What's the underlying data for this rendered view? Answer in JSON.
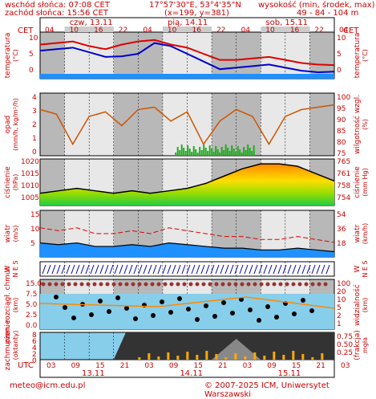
{
  "header": {
    "sunrise": "wschód słońca: 07:08 CET",
    "sunset": "zachód słońca: 15:56 CET",
    "coords": "17°57'30\"E, 53°4'35\"N",
    "grid": "(x=199, y=381)",
    "height_label": "wysokość (min, środek, max)",
    "height_values": "49 - 84 - 104 m"
  },
  "timezone": {
    "left": "CET",
    "right": "CET"
  },
  "top_hours": [
    "04",
    "10",
    "16",
    "22",
    "04",
    "10",
    "16",
    "22",
    "04",
    "10",
    "16",
    "22",
    "04"
  ],
  "top_days": [
    "czw, 13.11",
    "pią, 14.11",
    "sob, 15.11"
  ],
  "bottom_tz": "UTC",
  "bottom_hours": [
    "03",
    "09",
    "15",
    "21",
    "03",
    "09",
    "15",
    "21",
    "03",
    "09",
    "15",
    "21",
    "03"
  ],
  "bottom_days": [
    "13.11",
    "14.11",
    "15.11"
  ],
  "panels": {
    "temperature": {
      "label_left": "temperatura",
      "label_left2": "(°C)",
      "label_right": "temperatura",
      "label_right2": "(°C)",
      "ticks": [
        "10",
        "5",
        "0"
      ]
    },
    "precip": {
      "label_left": "opad",
      "label_left2": "(mm/h, kg/m²/h)",
      "label_right": "wilgotność wzgl.",
      "label_right2": "(%)",
      "ticks_left": [
        "4",
        "3",
        "2",
        "1",
        "0"
      ],
      "ticks_right": [
        "100",
        "95",
        "90",
        "85",
        "80",
        "75"
      ]
    },
    "pressure": {
      "label_left": "ciśnienie",
      "label_left2": "(hPa)",
      "label_right": "ciśnienie",
      "label_right2": "(mm Hg)",
      "ticks_left": [
        "1020",
        "1015",
        "1010",
        "1005"
      ],
      "ticks_right": [
        "765",
        "761",
        "758",
        "754"
      ]
    },
    "wind": {
      "label_left": "wiatr",
      "label_left2": "(m/s)",
      "label_right": "wiatr",
      "label_right2": "(km/h)",
      "ticks_left": [
        "15",
        "10",
        "5"
      ],
      "ticks_right": [
        "54",
        "36",
        "18"
      ]
    },
    "winddir": {
      "label_left": "W",
      "label_left2": "N E S",
      "label_right": "W",
      "label_right2": "N E S"
    },
    "cloud": {
      "label_left": "pion. rozciągł. chmur",
      "label_left2": "(km)",
      "label_right": "widzialność",
      "label_right2": "(km)",
      "ticks_left": [
        "15.0",
        "7.5",
        "5.0",
        "2.5",
        "0.0"
      ],
      "ticks_right": [
        "100",
        "20",
        "10",
        "5",
        "2",
        "1"
      ]
    },
    "cover": {
      "label_left": "zachmurzenie",
      "label_left2": "(oktanty)",
      "label_right": "(frakcja)",
      "label_right2": "mgła",
      "ticks_left": [
        "8",
        "6",
        "4",
        "2",
        "0"
      ],
      "ticks_right": [
        "0.75",
        "0.50",
        "0.25"
      ]
    }
  },
  "colors": {
    "accent": "#cc0000",
    "temp_red": "#dd0000",
    "temp_blue": "#0000cc",
    "precip_green": "#22aa22",
    "humidity": "#cc5500",
    "sea": "#1e90ff"
  },
  "footer": {
    "email": "meteo@icm.edu.pl",
    "copyright": "© 2007-2025 ICM, Uniwersytet Warszawski"
  }
}
